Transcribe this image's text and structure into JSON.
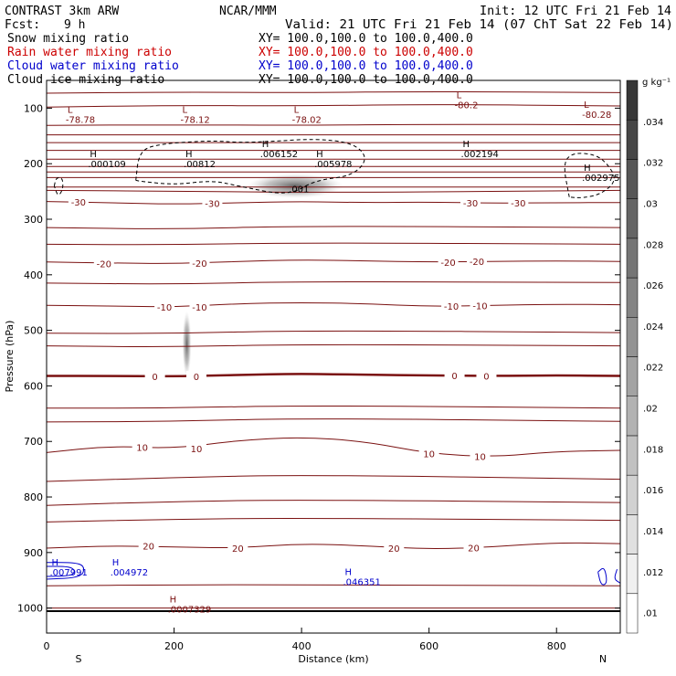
{
  "header": {
    "model": "CONTRAST  3km ARW",
    "org": "NCAR/MMM",
    "init": "Init: 12 UTC Fri 21 Feb 14",
    "fcst_label": "Fcst:",
    "fcst_value": "9 h",
    "valid": "Valid: 21 UTC Fri 21 Feb 14 (07 ChT Sat 22 Feb 14)"
  },
  "legend": [
    {
      "label": "Snow mixing ratio",
      "xy": "XY= 100.0,100.0 to 100.0,400.0",
      "color": "#000000"
    },
    {
      "label": "Rain water mixing ratio",
      "xy": "XY= 100.0,100.0 to 100.0,400.0",
      "color": "#cc0000"
    },
    {
      "label": "Cloud water mixing ratio",
      "xy": "XY= 100.0,100.0 to 100.0,400.0",
      "color": "#0000cc"
    },
    {
      "label": "Cloud ice mixing ratio",
      "xy": "XY= 100.0,100.0 to 100.0,400.0",
      "color": "#000000"
    }
  ],
  "chart_data": {
    "type": "heatmap",
    "xlabel": "Distance (km)",
    "ylabel": "Pressure (hPa)",
    "xlim": [
      0,
      900
    ],
    "ylim": [
      1045,
      50
    ],
    "x_ticks": [
      0,
      200,
      400,
      600,
      800
    ],
    "y_ticks": [
      100,
      200,
      300,
      400,
      500,
      600,
      700,
      800,
      900,
      1000
    ],
    "x_end_labels": {
      "left": "S",
      "right": "N"
    },
    "colorbar": {
      "unit": "g kg⁻¹",
      "ticks": [
        ".01",
        ".012",
        ".014",
        ".016",
        ".018",
        ".02",
        ".022",
        ".024",
        ".026",
        ".028",
        ".03",
        ".032",
        ".034"
      ],
      "range": [
        0.009,
        0.036
      ]
    },
    "shading": [
      {
        "x": 390,
        "p": 240,
        "rx": 75,
        "rp": 22,
        "peak": 0.018
      },
      {
        "x": 220,
        "p": 525,
        "rx": 7,
        "rp": 60,
        "peak": 0.03
      }
    ],
    "temperature_contours": [
      {
        "value": -30,
        "label": "-30",
        "points": [
          [
            0,
            268
          ],
          [
            100,
            270
          ],
          [
            200,
            273
          ],
          [
            300,
            270
          ],
          [
            400,
            268
          ],
          [
            500,
            270
          ],
          [
            600,
            269
          ],
          [
            700,
            271
          ],
          [
            800,
            270
          ],
          [
            900,
            270
          ]
        ],
        "labels_at": [
          [
            50,
            269
          ],
          [
            260,
            271
          ],
          [
            665,
            270
          ],
          [
            740,
            270
          ]
        ]
      },
      {
        "value": -20,
        "label": "-20",
        "points": [
          [
            0,
            377
          ],
          [
            100,
            379
          ],
          [
            200,
            380
          ],
          [
            300,
            376
          ],
          [
            400,
            373
          ],
          [
            500,
            375
          ],
          [
            600,
            377
          ],
          [
            700,
            376
          ],
          [
            800,
            375
          ],
          [
            900,
            376
          ]
        ],
        "labels_at": [
          [
            90,
            380
          ],
          [
            240,
            379
          ],
          [
            630,
            377
          ],
          [
            675,
            376
          ]
        ]
      },
      {
        "value": -10,
        "label": "-10",
        "points": [
          [
            0,
            455
          ],
          [
            100,
            456
          ],
          [
            200,
            458
          ],
          [
            300,
            452
          ],
          [
            400,
            450
          ],
          [
            500,
            452
          ],
          [
            600,
            457
          ],
          [
            700,
            455
          ],
          [
            800,
            453
          ],
          [
            900,
            454
          ]
        ],
        "labels_at": [
          [
            185,
            458
          ],
          [
            240,
            458
          ],
          [
            635,
            456
          ],
          [
            680,
            455
          ]
        ]
      },
      {
        "value": 0,
        "label": "0",
        "points": [
          [
            0,
            582
          ],
          [
            100,
            582
          ],
          [
            200,
            583
          ],
          [
            300,
            580
          ],
          [
            400,
            578
          ],
          [
            500,
            580
          ],
          [
            600,
            581
          ],
          [
            700,
            582
          ],
          [
            800,
            581
          ],
          [
            900,
            582
          ]
        ],
        "labels_at": [
          [
            170,
            583
          ],
          [
            235,
            583
          ],
          [
            640,
            581
          ],
          [
            690,
            582
          ]
        ]
      },
      {
        "value": 10,
        "label": "10",
        "points": [
          [
            0,
            720
          ],
          [
            100,
            708
          ],
          [
            200,
            713
          ],
          [
            300,
            698
          ],
          [
            400,
            692
          ],
          [
            500,
            700
          ],
          [
            600,
            722
          ],
          [
            700,
            728
          ],
          [
            800,
            718
          ],
          [
            900,
            716
          ]
        ],
        "labels_at": [
          [
            150,
            710
          ],
          [
            235,
            713
          ],
          [
            600,
            722
          ],
          [
            680,
            727
          ]
        ]
      },
      {
        "value": 20,
        "label": "20",
        "points": [
          [
            0,
            892
          ],
          [
            100,
            888
          ],
          [
            200,
            890
          ],
          [
            300,
            892
          ],
          [
            400,
            884
          ],
          [
            500,
            888
          ],
          [
            600,
            894
          ],
          [
            700,
            890
          ],
          [
            800,
            882
          ],
          [
            900,
            884
          ]
        ],
        "labels_at": [
          [
            160,
            888
          ],
          [
            300,
            892
          ],
          [
            545,
            892
          ],
          [
            670,
            891
          ]
        ]
      }
    ],
    "extra_contours": [
      {
        "points": [
          [
            0,
            73
          ],
          [
            200,
            71
          ],
          [
            400,
            72
          ],
          [
            600,
            70
          ],
          [
            900,
            72
          ]
        ]
      },
      {
        "points": [
          [
            0,
            98
          ],
          [
            200,
            95
          ],
          [
            400,
            96
          ],
          [
            600,
            93
          ],
          [
            900,
            96
          ]
        ]
      },
      {
        "points": [
          [
            0,
            131
          ],
          [
            200,
            130
          ],
          [
            400,
            131
          ],
          [
            600,
            129
          ],
          [
            900,
            130
          ]
        ]
      },
      {
        "points": [
          [
            0,
            148
          ],
          [
            900,
            148
          ]
        ]
      },
      {
        "points": [
          [
            0,
            162
          ],
          [
            900,
            162
          ]
        ]
      },
      {
        "points": [
          [
            0,
            176
          ],
          [
            900,
            176
          ]
        ]
      },
      {
        "points": [
          [
            0,
            192
          ],
          [
            900,
            192
          ]
        ]
      },
      {
        "points": [
          [
            0,
            205
          ],
          [
            900,
            205
          ]
        ]
      },
      {
        "points": [
          [
            0,
            215
          ],
          [
            900,
            215
          ]
        ]
      },
      {
        "points": [
          [
            0,
            225
          ],
          [
            900,
            225
          ]
        ]
      },
      {
        "points": [
          [
            0,
            242
          ],
          [
            900,
            242
          ]
        ]
      },
      {
        "points": [
          [
            0,
            248
          ],
          [
            250,
            250
          ],
          [
            450,
            252
          ],
          [
            900,
            248
          ]
        ]
      },
      {
        "points": [
          [
            0,
            315
          ],
          [
            200,
            318
          ],
          [
            400,
            312
          ],
          [
            900,
            315
          ]
        ]
      },
      {
        "points": [
          [
            0,
            345
          ],
          [
            200,
            346
          ],
          [
            400,
            342
          ],
          [
            900,
            345
          ]
        ]
      },
      {
        "points": [
          [
            0,
            415
          ],
          [
            200,
            417
          ],
          [
            400,
            412
          ],
          [
            900,
            414
          ]
        ]
      },
      {
        "points": [
          [
            0,
            505
          ],
          [
            200,
            506
          ],
          [
            400,
            500
          ],
          [
            900,
            504
          ]
        ]
      },
      {
        "points": [
          [
            0,
            528
          ],
          [
            200,
            530
          ],
          [
            400,
            525
          ],
          [
            900,
            528
          ]
        ]
      },
      {
        "points": [
          [
            0,
            640
          ],
          [
            200,
            640
          ],
          [
            400,
            635
          ],
          [
            900,
            640
          ]
        ]
      },
      {
        "points": [
          [
            0,
            665
          ],
          [
            200,
            664
          ],
          [
            400,
            658
          ],
          [
            900,
            664
          ]
        ]
      },
      {
        "points": [
          [
            0,
            772
          ],
          [
            200,
            765
          ],
          [
            400,
            760
          ],
          [
            900,
            768
          ]
        ]
      },
      {
        "points": [
          [
            0,
            815
          ],
          [
            200,
            808
          ],
          [
            400,
            805
          ],
          [
            900,
            810
          ]
        ]
      },
      {
        "points": [
          [
            0,
            845
          ],
          [
            200,
            840
          ],
          [
            400,
            838
          ],
          [
            900,
            842
          ]
        ]
      },
      {
        "points": [
          [
            0,
            960
          ],
          [
            200,
            958
          ],
          [
            400,
            958
          ],
          [
            900,
            960
          ]
        ]
      },
      {
        "points": [
          [
            0,
            1000
          ],
          [
            900,
            1000
          ]
        ]
      }
    ],
    "temp_extrema": [
      {
        "type": "L",
        "value": "-78.78",
        "x": 30,
        "p": 123
      },
      {
        "type": "L",
        "value": "-78.12",
        "x": 210,
        "p": 123
      },
      {
        "type": "L",
        "value": "-78.02",
        "x": 385,
        "p": 123
      },
      {
        "type": "L",
        "value": "-80.2",
        "x": 640,
        "p": 97
      },
      {
        "type": "L",
        "value": "-80.28",
        "x": 840,
        "p": 114
      }
    ],
    "ice_extrema": [
      {
        "type": "H",
        "value": ".000109",
        "x": 65,
        "p": 203
      },
      {
        "type": "H",
        "value": ".00812",
        "x": 215,
        "p": 203
      },
      {
        "type": "H",
        "value": ".006152",
        "x": 335,
        "p": 185
      },
      {
        "type": "H",
        "value": ".005978",
        "x": 420,
        "p": 203
      },
      {
        "type": "H",
        "value": ".002194",
        "x": 650,
        "p": 185
      },
      {
        "type": "H",
        "value": ".002975",
        "x": 840,
        "p": 228
      }
    ],
    "snow_extrema": [
      {
        "type": "",
        "value": ".001",
        "x": 380,
        "p": 248
      }
    ],
    "temp_lows_near_surface": [
      {
        "type": "H",
        "value": ".0007329",
        "x": 190,
        "p": 1005
      }
    ],
    "cloud_water_extrema": [
      {
        "type": "H",
        "value": ".007991",
        "x": 5,
        "p": 938
      },
      {
        "type": "H",
        "value": ".004972",
        "x": 100,
        "p": 938
      },
      {
        "type": "H",
        "value": ".046351",
        "x": 465,
        "p": 955
      }
    ],
    "dashed_ice_outline": [
      [
        140,
        230
      ],
      [
        145,
        180
      ],
      [
        170,
        165
      ],
      [
        260,
        158
      ],
      [
        300,
        162
      ],
      [
        350,
        160
      ],
      [
        420,
        155
      ],
      [
        480,
        162
      ],
      [
        505,
        190
      ],
      [
        480,
        222
      ],
      [
        420,
        230
      ],
      [
        380,
        258
      ],
      [
        300,
        240
      ],
      [
        260,
        230
      ],
      [
        200,
        238
      ],
      [
        150,
        232
      ],
      [
        140,
        230
      ]
    ],
    "dashed_ice_outline_right": [
      [
        820,
        260
      ],
      [
        810,
        200
      ],
      [
        825,
        180
      ],
      [
        860,
        183
      ],
      [
        880,
        200
      ],
      [
        895,
        230
      ],
      [
        870,
        255
      ],
      [
        840,
        262
      ],
      [
        820,
        260
      ]
    ],
    "dashed_ice_small": [
      [
        12,
        240
      ],
      [
        15,
        225
      ],
      [
        25,
        225
      ],
      [
        26,
        245
      ],
      [
        18,
        260
      ],
      [
        12,
        240
      ]
    ],
    "cloud_water_contours": [
      {
        "points": [
          [
            0,
            918
          ],
          [
            45,
            918
          ],
          [
            60,
            925
          ],
          [
            55,
            945
          ],
          [
            0,
            948
          ]
        ]
      },
      {
        "points": [
          [
            0,
            925
          ],
          [
            35,
            925
          ],
          [
            45,
            932
          ],
          [
            40,
            942
          ],
          [
            0,
            943
          ]
        ]
      },
      {
        "points": [
          [
            865,
            935
          ],
          [
            875,
            925
          ],
          [
            880,
            955
          ],
          [
            870,
            960
          ],
          [
            865,
            935
          ]
        ]
      },
      {
        "points": [
          [
            895,
            930
          ],
          [
            890,
            948
          ],
          [
            900,
            955
          ]
        ]
      }
    ]
  }
}
